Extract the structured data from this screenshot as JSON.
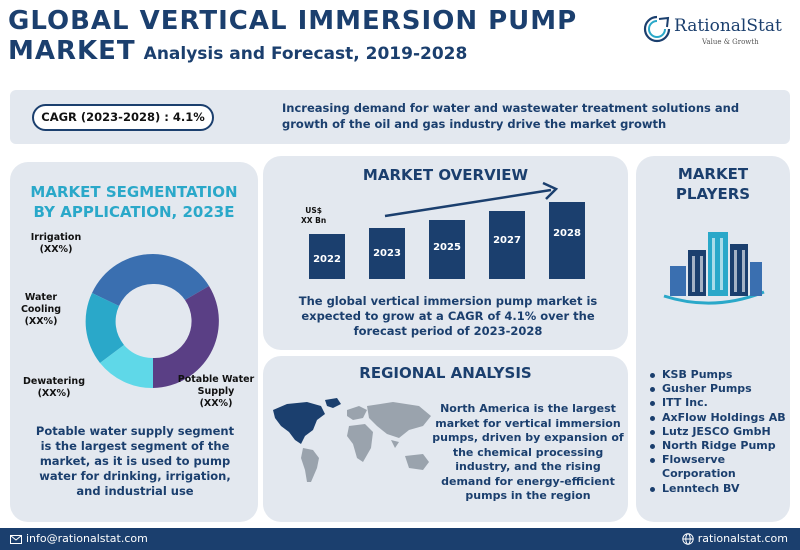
{
  "header": {
    "title_line1": "GLOBAL VERTICAL IMMERSION PUMP",
    "title_line2_big": "MARKET",
    "title_line2_sub": "Analysis and Forecast, 2019-2028"
  },
  "logo": {
    "name": "RationalStat",
    "tagline": "Value & Growth"
  },
  "cagr": {
    "label": "CAGR (2023-2028) : 4.1%",
    "statement": "Increasing demand for water and wastewater treatment solutions and growth of the oil and gas industry drive the market growth"
  },
  "segmentation": {
    "title_line1": "MARKET SEGMENTATION",
    "title_line2": "BY  APPLICATION, 2023E",
    "slices": [
      {
        "name_line1": "Irrigation",
        "name_line2": "",
        "share": "(XX%)",
        "color": "#3a6fb0"
      },
      {
        "name_line1": "Water",
        "name_line2": "Cooling",
        "share": "(XX%)",
        "color": "#2aa8c9"
      },
      {
        "name_line1": "Dewatering",
        "name_line2": "",
        "share": "(XX%)",
        "color": "#5fd8e8"
      },
      {
        "name_line1": "Potable Water",
        "name_line2": "Supply",
        "share": "(XX%)",
        "color": "#5a3f85"
      }
    ],
    "description": "Potable water supply segment is the largest segment of the market, as it is used to pump water for drinking, irrigation, and industrial use"
  },
  "overview": {
    "title": "MARKET OVERVIEW",
    "unit_line1": "US$",
    "unit_line2": "XX Bn",
    "years": [
      "2022",
      "2023",
      "2025",
      "2027",
      "2028"
    ],
    "description": "The  global vertical immersion pump market is expected to grow at a CAGR of 4.1% over the forecast period of 2023-2028"
  },
  "regional": {
    "title": "REGIONAL ANALYSIS",
    "description": "North America is the largest market for vertical immersion pumps, driven by expansion of the chemical processing industry, and the rising demand for energy-efficient pumps in the region",
    "highlight_color": "#1b3f6e"
  },
  "players": {
    "title_line1": "MARKET",
    "title_line2": "PLAYERS",
    "list": [
      "KSB Pumps",
      "Gusher Pumps",
      "ITT Inc.",
      "AxFlow Holdings AB",
      "Lutz JESCO GmbH",
      "North Ridge Pump",
      "Flowserve",
      "Corporation",
      "Lenntech BV"
    ]
  },
  "footer": {
    "email": "info@rationalstat.com",
    "website": "rationalstat.com"
  },
  "colors": {
    "brand": "#1b3f6e",
    "accent": "#2aa8c9",
    "panel": "#e3e8ef"
  }
}
